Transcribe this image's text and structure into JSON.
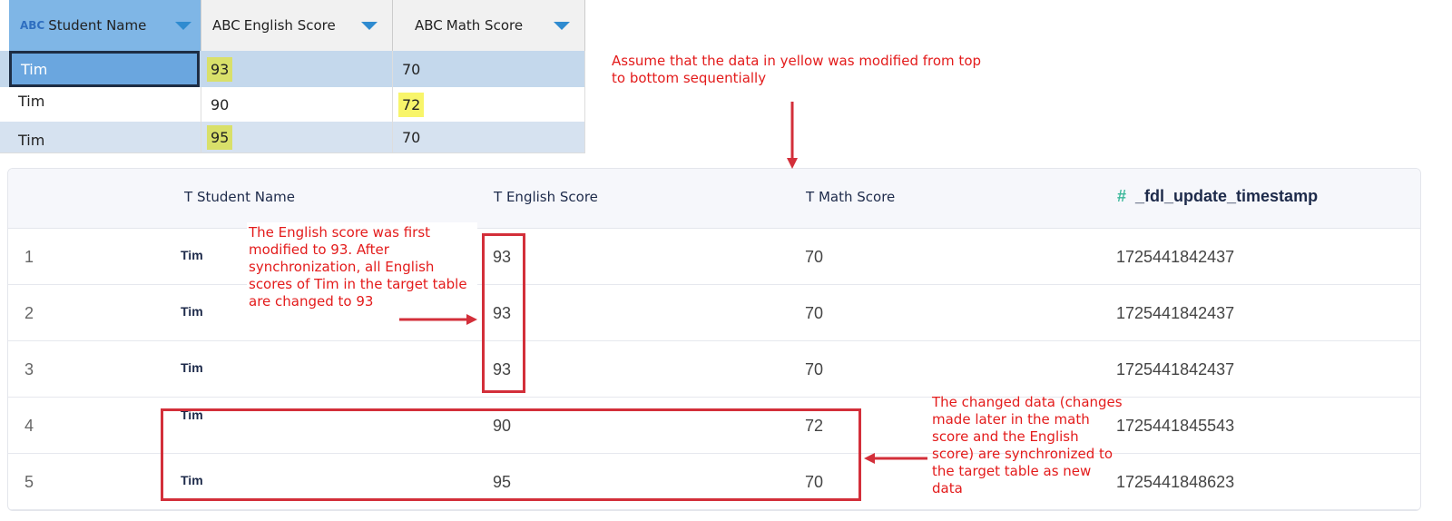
{
  "source_table": {
    "columns": [
      {
        "type": "ABC",
        "label": "Student Name"
      },
      {
        "type": "ABC",
        "label": "English Score"
      },
      {
        "type": "ABC",
        "label": "Math Score"
      }
    ],
    "rows": [
      [
        "Tim",
        "93",
        "70"
      ],
      [
        "Tim",
        "90",
        "72"
      ],
      [
        "Tim",
        "95",
        "70"
      ]
    ],
    "highlight_color": "#f8f56a"
  },
  "target_table": {
    "columns": [
      {
        "type": "T",
        "label": "Student Name"
      },
      {
        "type": "T",
        "label": "English Score"
      },
      {
        "type": "T",
        "label": "Math Score"
      },
      {
        "type": "#",
        "label": "_fdl_update_timestamp"
      }
    ],
    "rows": [
      {
        "index": "1",
        "name": "Tim",
        "english": "93",
        "math": "70",
        "ts": "1725441842437"
      },
      {
        "index": "2",
        "name": "Tim",
        "english": "93",
        "math": "70",
        "ts": "1725441842437"
      },
      {
        "index": "3",
        "name": "Tim",
        "english": "93",
        "math": "70",
        "ts": "1725441842437"
      },
      {
        "index": "4",
        "name": "Tim",
        "english": "90",
        "math": "72",
        "ts": "1725441845543"
      },
      {
        "index": "5",
        "name": "Tim",
        "english": "95",
        "math": "70",
        "ts": "1725441848623"
      }
    ]
  },
  "annotations": {
    "top": "Assume that the data in yellow was modified from top to bottom sequentially",
    "english": "The English score was first modified to 93. After synchronization, all English scores of Tim in the target table are changed to 93",
    "changed": "The changed data (changes made later in the math score and the English score) are synchronized to the target table as new data",
    "color": "#e31b1b"
  }
}
